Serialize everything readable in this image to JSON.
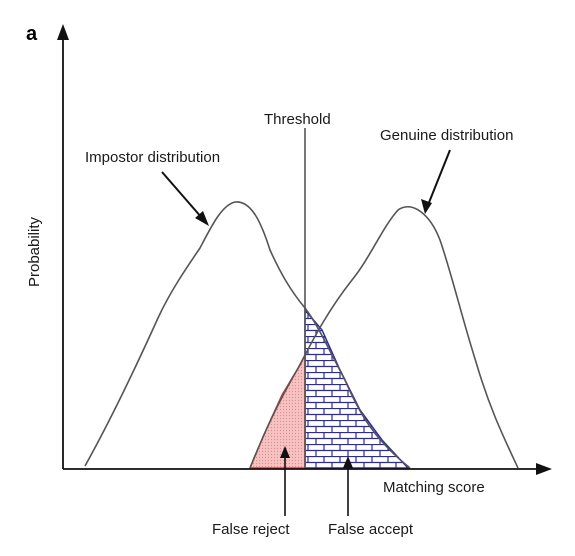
{
  "panel_label": "a",
  "axes": {
    "y_label": "Probability",
    "x_label": "Matching score"
  },
  "annotations": {
    "threshold": "Threshold",
    "impostor": "Impostor distribution",
    "genuine": "Genuine distribution",
    "false_reject": "False reject",
    "false_accept": "False accept"
  },
  "colors": {
    "curve": "#555555",
    "axis": "#111111",
    "false_reject_fill": "#f4b6b6",
    "false_reject_edge": "#d33a3a",
    "false_accept_fill": "#ffffff",
    "false_accept_brick": "#2a2aa8"
  }
}
